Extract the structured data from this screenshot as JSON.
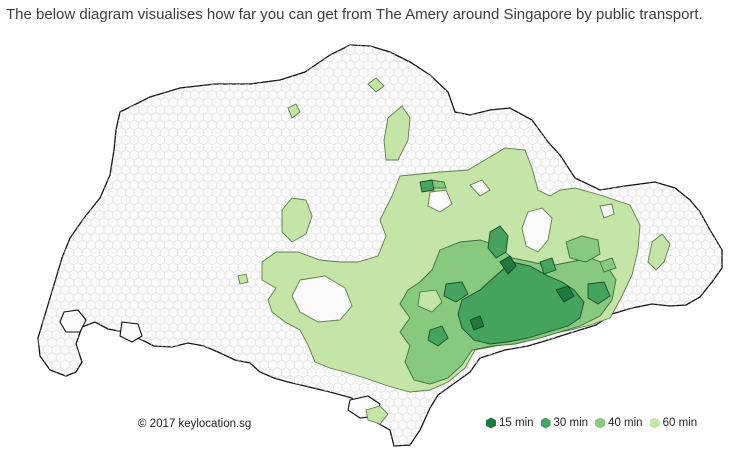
{
  "caption": "The below diagram visualises how far you can get from The Amery around Singapore by public transport.",
  "copyright": "© 2017 keylocation.sg",
  "legend": [
    {
      "label": "15 min",
      "color": "#1e7a3e"
    },
    {
      "label": "30 min",
      "color": "#44a35d"
    },
    {
      "label": "40 min",
      "color": "#86c97f"
    },
    {
      "label": "60 min",
      "color": "#c5e4a7"
    }
  ],
  "colors": {
    "unreached": "#fafafa",
    "hex_stroke": "#d9d9d9",
    "coast": "#111111"
  }
}
